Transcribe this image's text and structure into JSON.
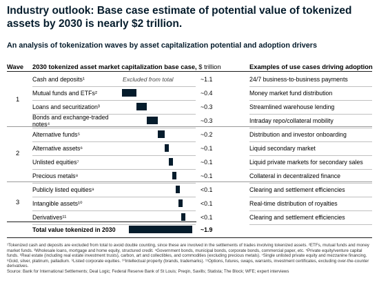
{
  "title": "Industry outlook: Base case estimate of potential value of tokenized assets by 2030 is nearly $2 trillion.",
  "subtitle": "An analysis of tokenization waves by asset capitalization potential and adoption drivers",
  "headers": {
    "wave": "Wave",
    "chart": "2030 tokenized asset market capitalization base case,",
    "chart_unit": " $ trillion",
    "cases": "Examples of use cases driving adoption"
  },
  "excluded_note": "Excluded from total",
  "waves": [
    "1",
    "2",
    "3"
  ],
  "chart_data": {
    "type": "bar",
    "orientation": "horizontal-waterfall",
    "title": "2030 tokenized asset market capitalization base case, $ trillion",
    "categories": [
      "Cash and deposits¹",
      "Mutual funds and ETFs²",
      "Loans and securitization³",
      "Bonds and exchange-traded notes⁴",
      "Alternative funds⁵",
      "Alternative assets⁶",
      "Unlisted equities⁷",
      "Precious metals⁸",
      "Publicly listed equities⁹",
      "Intangible assets¹⁰",
      "Derivatives¹¹",
      "Total value tokenized in 2030"
    ],
    "values": [
      1.1,
      0.4,
      0.3,
      0.3,
      0.2,
      0.1,
      0.1,
      0.1,
      0.05,
      0.05,
      0.05,
      1.9
    ],
    "value_labels": [
      "~1.1",
      "~0.4",
      "~0.3",
      "~0.3",
      "~0.2",
      "~0.1",
      "~0.1",
      "~0.1",
      "<0.1",
      "<0.1",
      "<0.1",
      "~1.9"
    ],
    "excluded_from_total": [
      true,
      false,
      false,
      false,
      false,
      false,
      false,
      false,
      false,
      false,
      false,
      false
    ],
    "is_total": [
      false,
      false,
      false,
      false,
      false,
      false,
      false,
      false,
      false,
      false,
      false,
      true
    ],
    "wave": [
      1,
      1,
      1,
      1,
      2,
      2,
      2,
      2,
      3,
      3,
      3,
      null
    ],
    "use_cases": [
      "24/7 business-to-business payments",
      "Money market fund distribution",
      "Streamlined warehouse lending",
      "Intraday repo/collateral mobility",
      "Distribution and investor onboarding",
      "Liquid secondary market",
      "Liquid private markets for secondary sales",
      "Collateral in decentralized finance",
      "Clearing and settlement efficiencies",
      "Real-time distribution of royalties",
      "Clearing and settlement efficiencies",
      ""
    ],
    "bar_color": "#051c2c"
  },
  "footnotes": [
    "¹Tokenized cash and deposits are excluded from total to avoid double counting, since these are involved in the settlements of trades involving tokenized assets. ²ETFs, mutual funds and money market funds. ³Wholesale loans, mortgage and home equity, structured credit. ⁴Government bonds, municipal bonds, corporate bonds, commercial paper, etc. ⁵Private equity/venture capital funds. ⁶Real estate (including real estate investment trusts), carbon, art and collectibles, and commodities (excluding precious metals). ⁷Single unlisted private equity and mezzanine financing. ⁸Gold, silver, platinum, palladium. ⁹Listed corporate equities. ¹⁰Intellectual property (brands, trademarks). ¹¹Options, futures, swaps, warrants, investment certificates, excluding over-the-counter derivatives.",
    "Source: Bank for International Settlements; Deal Logic; Federal Reserve Bank of St Louis; Preqin, Savills; Statista; The Block; WFE; expert interviews"
  ]
}
